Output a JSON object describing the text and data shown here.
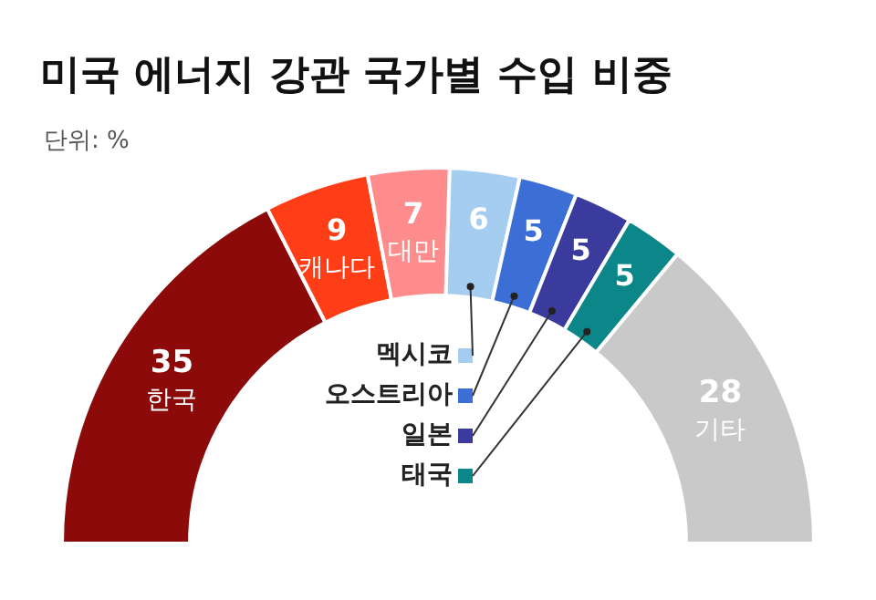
{
  "chart_data": {
    "type": "donut",
    "title": "미국 에너지 강관 국가별 수입 비중",
    "subtitle": "단위: %",
    "categories": [
      "한국",
      "캐나다",
      "대만",
      "멕시코",
      "오스트리아",
      "일본",
      "태국",
      "기타"
    ],
    "values": [
      35,
      9,
      7,
      6,
      5,
      5,
      5,
      28
    ],
    "colors": [
      "#8c0a0a",
      "#ff3d17",
      "#ff8c8c",
      "#a5cdf0",
      "#3b6fd6",
      "#3a3b9c",
      "#0b878a",
      "#c9c9c9"
    ],
    "data_labels": true,
    "legend": "bottom"
  }
}
